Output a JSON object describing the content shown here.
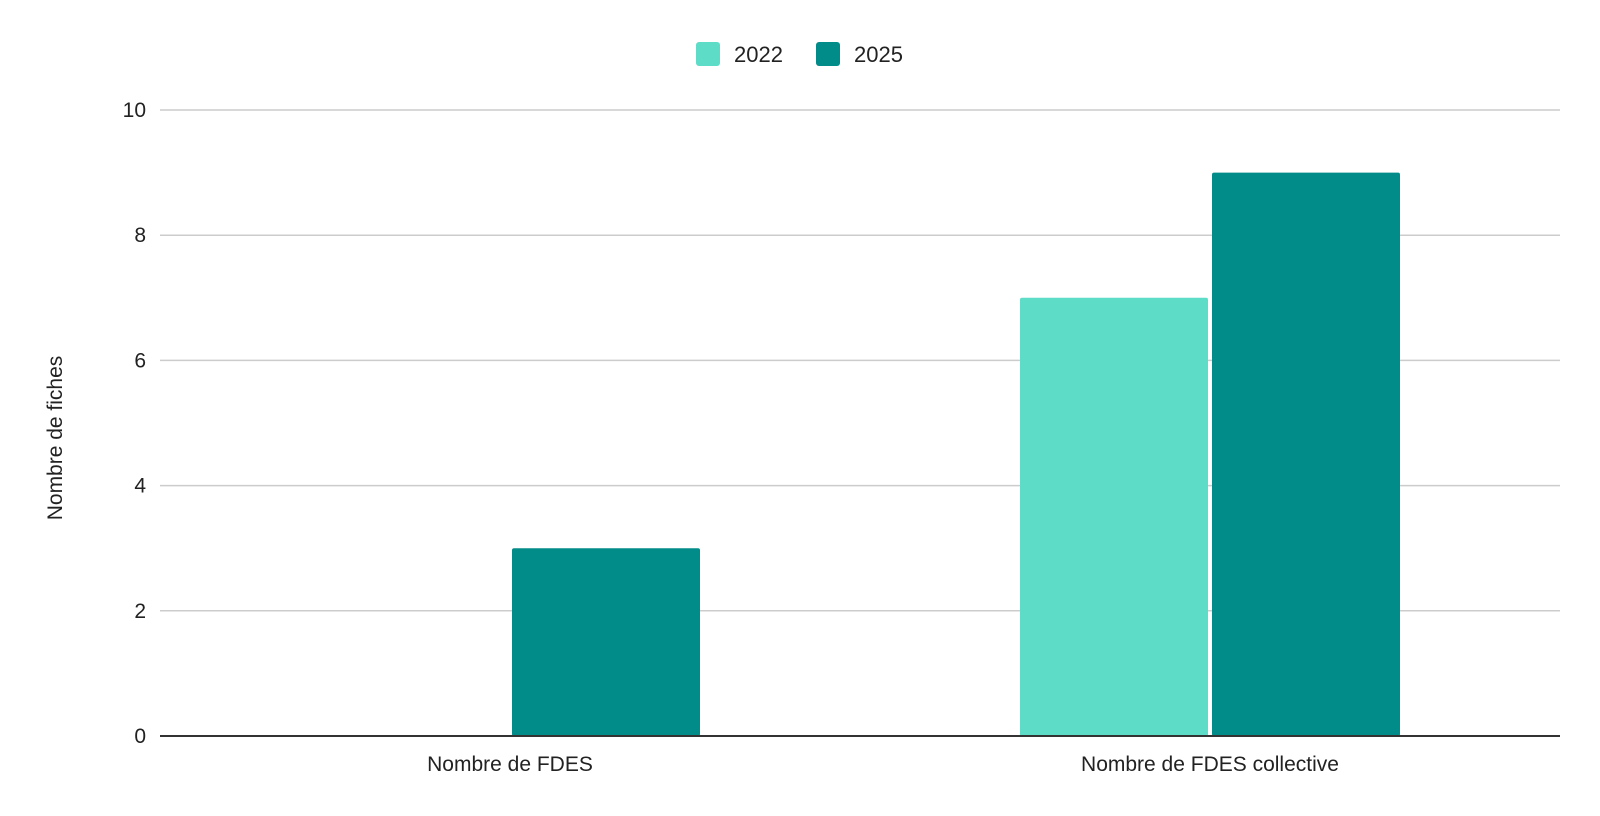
{
  "chart_data": {
    "type": "bar",
    "title": "",
    "xlabel": "",
    "ylabel": "Nombre de fiches",
    "categories": [
      "Nombre de FDES",
      "Nombre de FDES collective"
    ],
    "series": [
      {
        "name": "2022",
        "values": [
          0,
          7
        ],
        "color": "#5DDDC8"
      },
      {
        "name": "2025",
        "values": [
          3,
          9
        ],
        "color": "#028C89"
      }
    ],
    "ylim": [
      0,
      10
    ],
    "yticks": [
      0,
      2,
      4,
      6,
      8,
      10
    ],
    "grid": true,
    "legend_position": "top-center"
  }
}
